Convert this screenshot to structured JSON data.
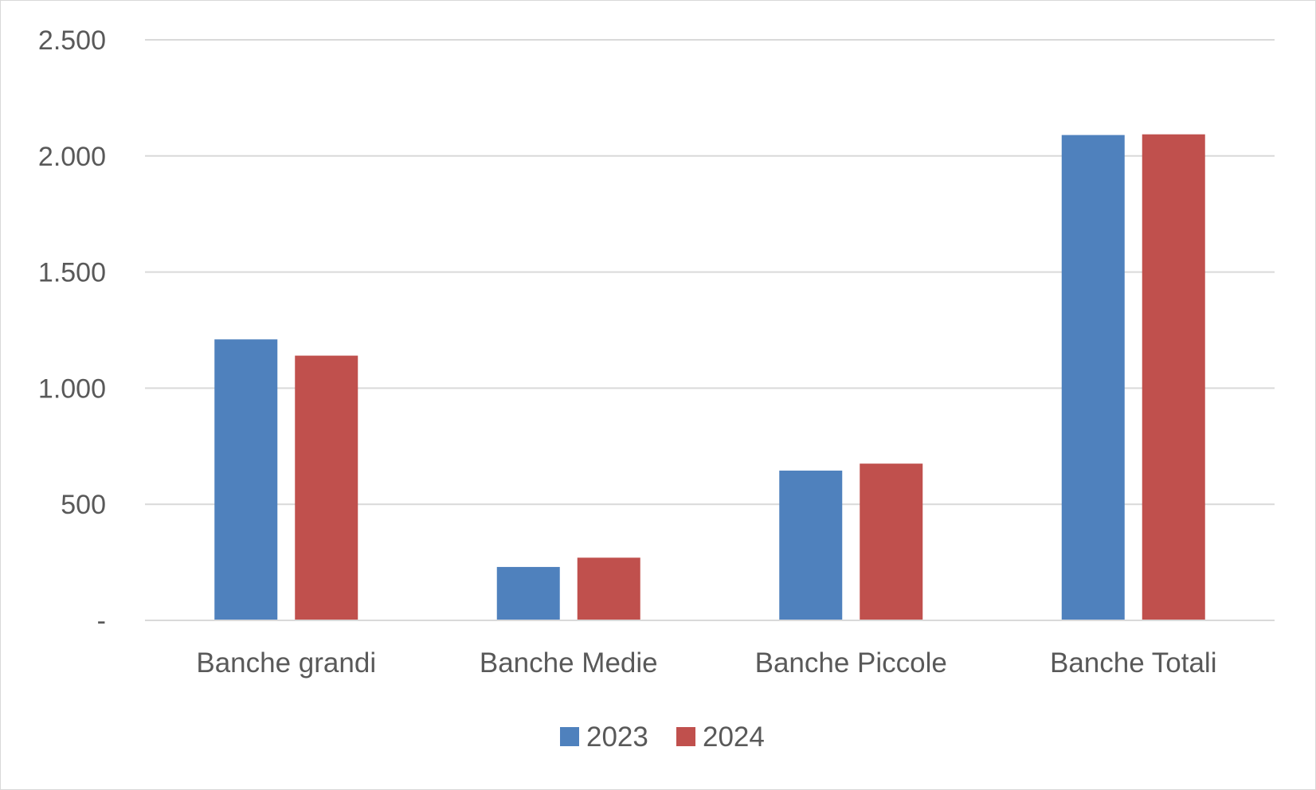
{
  "chart_data": {
    "type": "bar",
    "title": "",
    "xlabel": "",
    "ylabel": "",
    "categories": [
      "Banche grandi",
      "Banche Medie",
      "Banche Piccole",
      "Banche Totali"
    ],
    "series": [
      {
        "name": "2023",
        "color": "#4f81bd",
        "values": [
          1210,
          230,
          645,
          2090
        ]
      },
      {
        "name": "2024",
        "color": "#c0504d",
        "values": [
          1140,
          270,
          675,
          2093
        ]
      }
    ],
    "ylim": [
      0,
      2500
    ],
    "yticks": [
      0,
      500,
      1000,
      1500,
      2000,
      2500
    ],
    "ytick_labels": [
      "-",
      "500",
      "1.000",
      "1.500",
      "2.000",
      "2.500"
    ],
    "grid": true,
    "legend_position": "bottom"
  }
}
